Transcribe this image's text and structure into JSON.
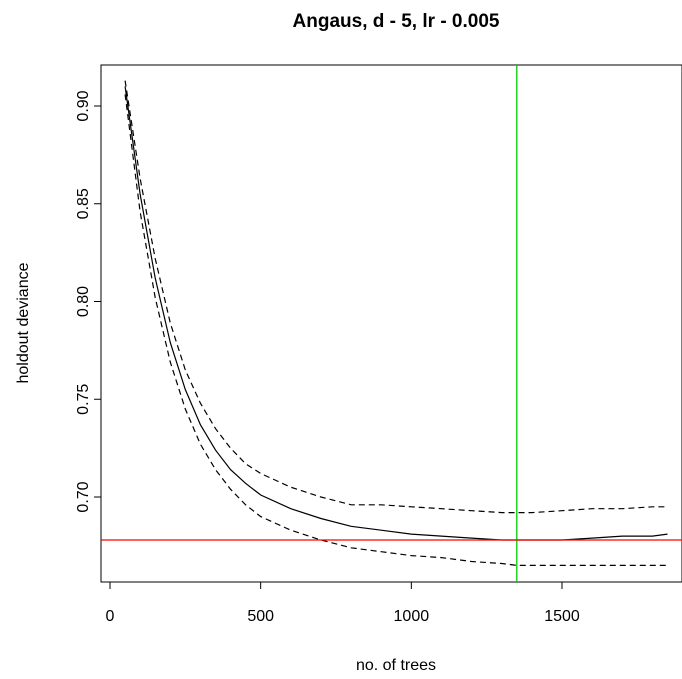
{
  "chart_data": {
    "type": "line",
    "title": "Angaus, d - 5, lr - 0.005",
    "xlabel": "no. of trees",
    "ylabel": "holdout deviance",
    "xlim": [
      0,
      1850
    ],
    "ylim": [
      0.66,
      0.92
    ],
    "x_ticks": [
      0,
      500,
      1000,
      1500
    ],
    "x_tick_labels": [
      "0",
      "500",
      "1000",
      "1500"
    ],
    "y_ticks": [
      0.7,
      0.75,
      0.8,
      0.85,
      0.9
    ],
    "y_tick_labels": [
      "0.70",
      "0.75",
      "0.80",
      "0.85",
      "0.90"
    ],
    "grid": false,
    "legend": "none",
    "series": [
      {
        "style": "solid",
        "color": "#000000",
        "x": [
          50,
          100,
          150,
          200,
          250,
          300,
          350,
          400,
          450,
          500,
          600,
          700,
          800,
          900,
          1000,
          1100,
          1200,
          1300,
          1350,
          1400,
          1500,
          1600,
          1700,
          1800,
          1850
        ],
        "y": [
          0.91,
          0.855,
          0.812,
          0.779,
          0.755,
          0.737,
          0.724,
          0.714,
          0.707,
          0.701,
          0.694,
          0.689,
          0.685,
          0.683,
          0.681,
          0.68,
          0.679,
          0.678,
          0.678,
          0.678,
          0.678,
          0.679,
          0.68,
          0.68,
          0.681
        ]
      },
      {
        "style": "dashed",
        "color": "#000000",
        "x": [
          50,
          100,
          150,
          200,
          250,
          300,
          350,
          400,
          450,
          500,
          600,
          700,
          800,
          900,
          1000,
          1100,
          1200,
          1300,
          1350,
          1400,
          1500,
          1600,
          1700,
          1800,
          1850
        ],
        "y": [
          0.913,
          0.863,
          0.822,
          0.789,
          0.765,
          0.748,
          0.735,
          0.725,
          0.717,
          0.712,
          0.705,
          0.7,
          0.696,
          0.696,
          0.695,
          0.694,
          0.693,
          0.692,
          0.692,
          0.692,
          0.693,
          0.694,
          0.694,
          0.695,
          0.695
        ]
      },
      {
        "style": "dashed",
        "color": "#000000",
        "x": [
          50,
          100,
          150,
          200,
          250,
          300,
          350,
          400,
          450,
          500,
          600,
          700,
          800,
          900,
          1000,
          1100,
          1200,
          1300,
          1350,
          1400,
          1500,
          1600,
          1700,
          1800,
          1850
        ],
        "y": [
          0.906,
          0.846,
          0.802,
          0.769,
          0.745,
          0.727,
          0.714,
          0.704,
          0.696,
          0.69,
          0.683,
          0.678,
          0.674,
          0.672,
          0.67,
          0.669,
          0.667,
          0.666,
          0.665,
          0.665,
          0.665,
          0.665,
          0.665,
          0.665,
          0.665
        ]
      }
    ],
    "reference_lines": [
      {
        "orientation": "vertical",
        "value": 1350,
        "color": "#00cc00"
      },
      {
        "orientation": "horizontal",
        "value": 0.678,
        "color": "#ff0000"
      }
    ]
  }
}
